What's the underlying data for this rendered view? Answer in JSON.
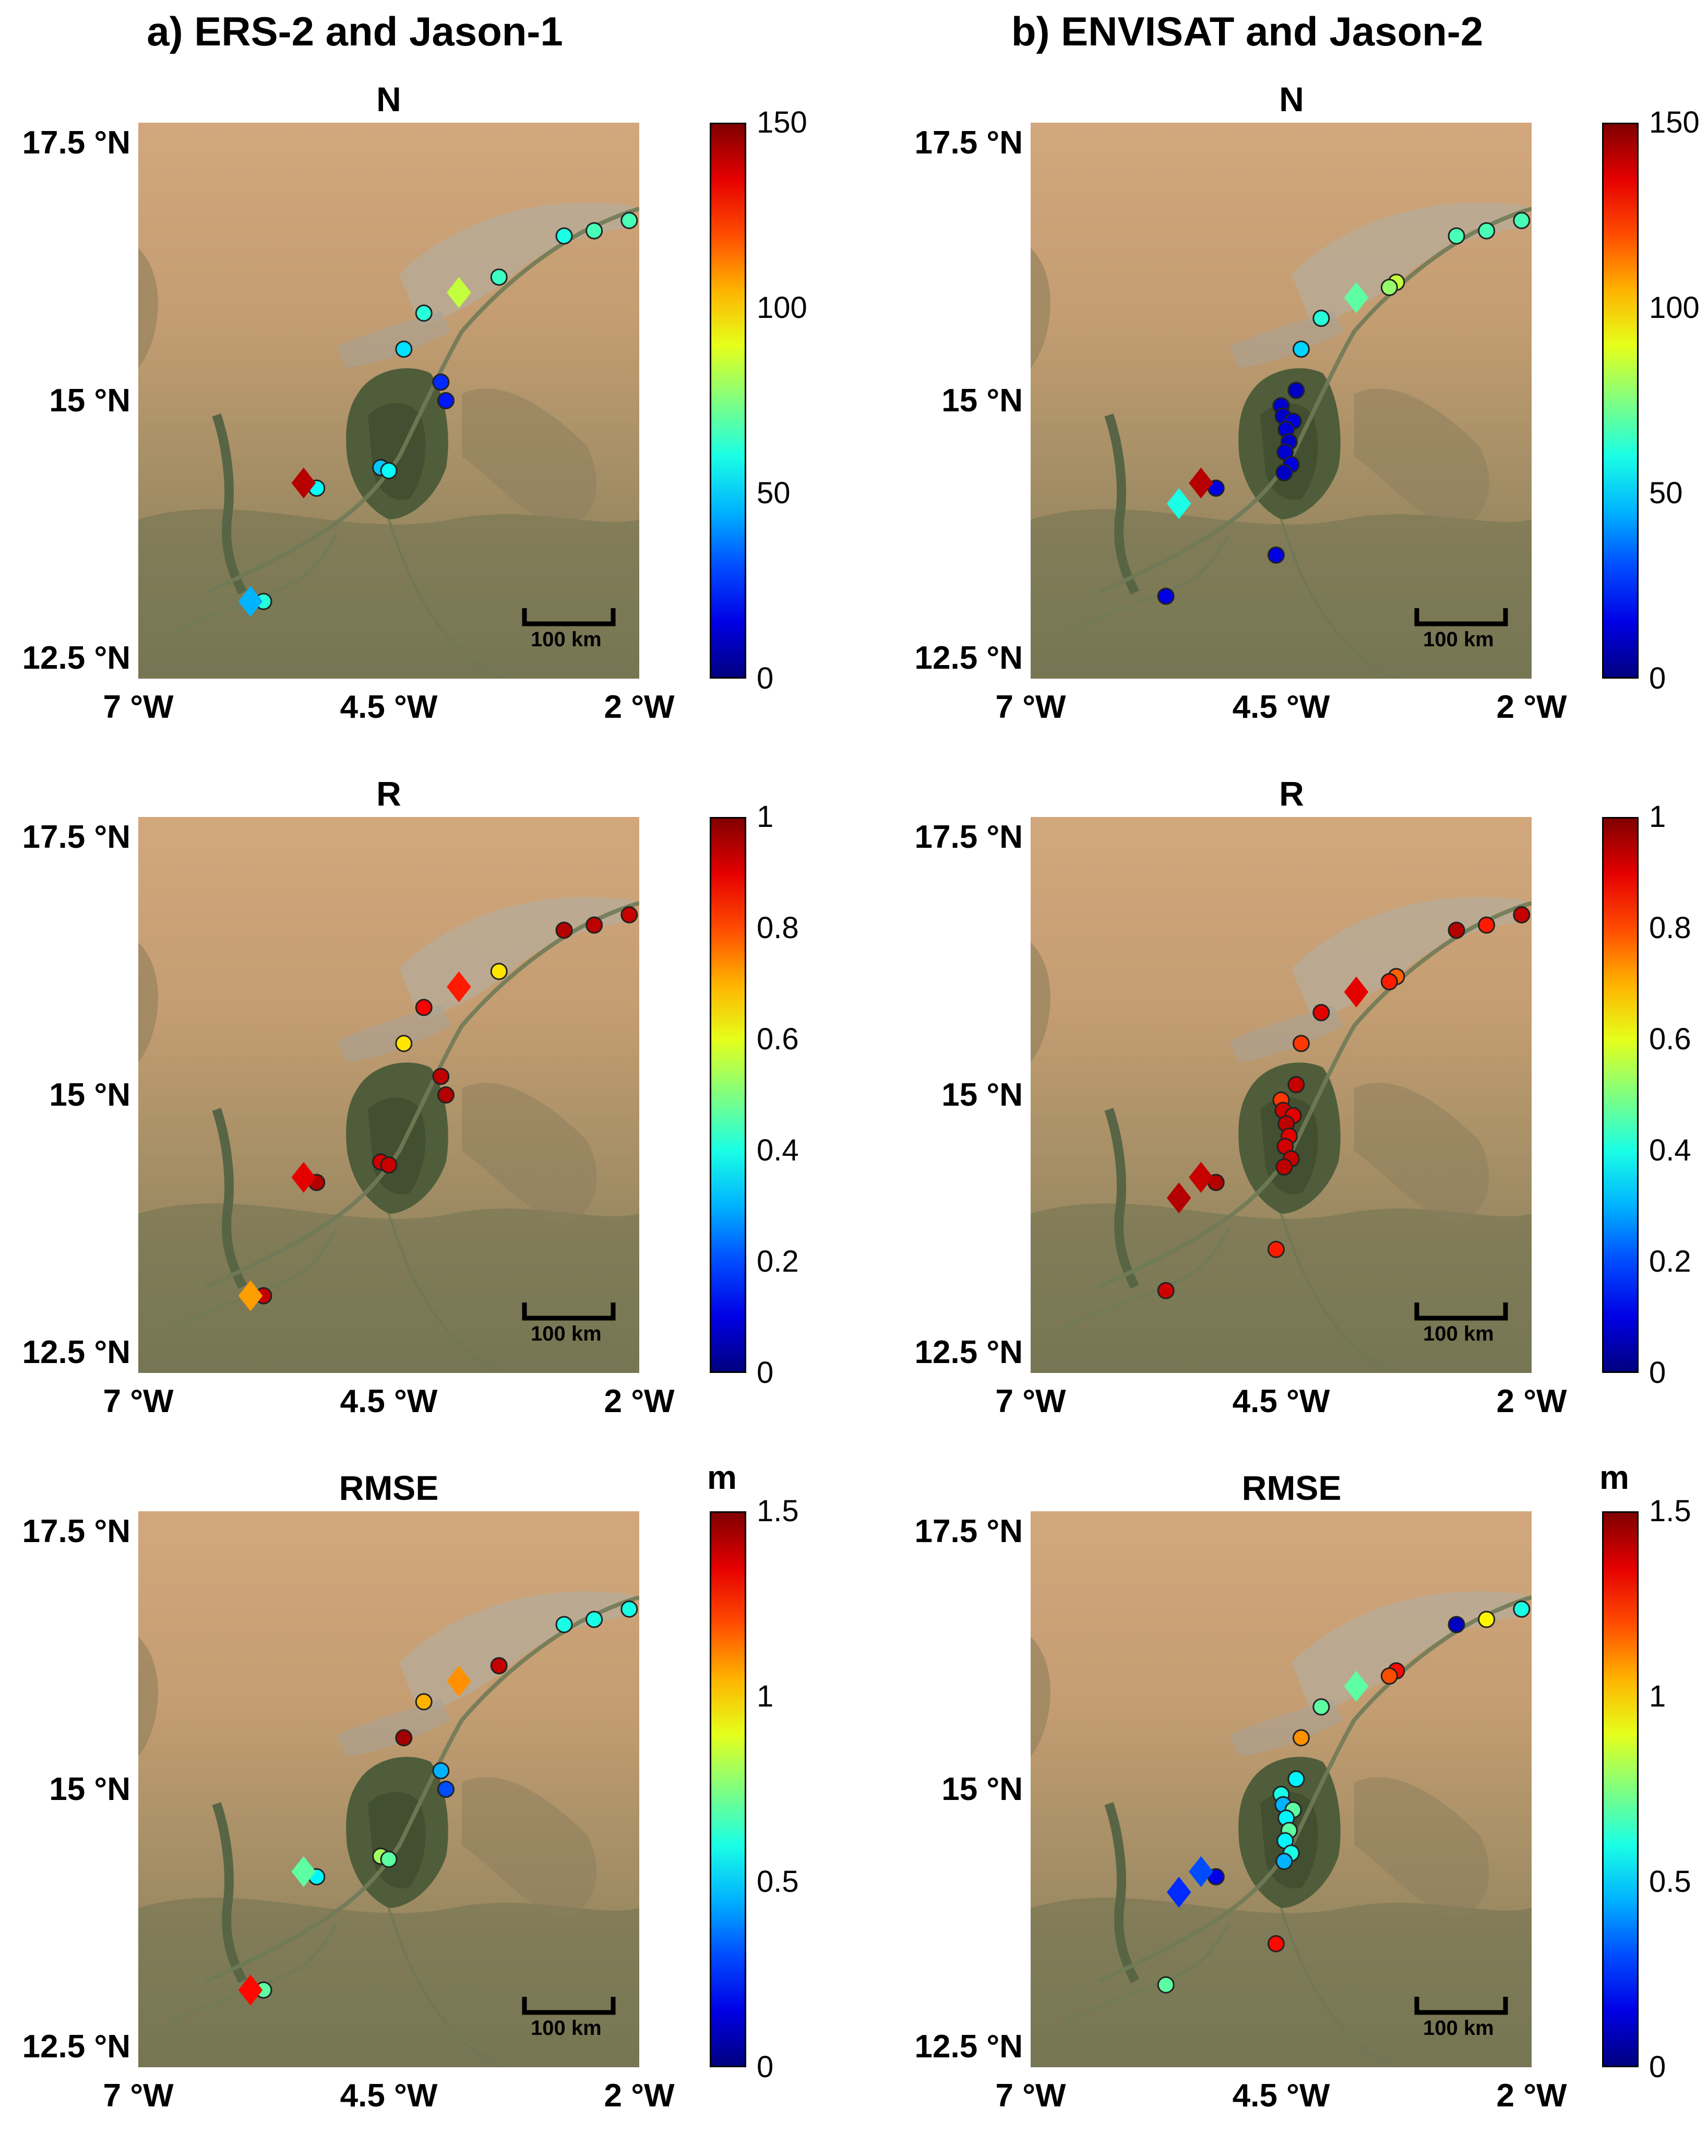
{
  "columns": [
    {
      "title": "a) ERS-2 and Jason-1"
    },
    {
      "title": "b) ENVISAT and Jason-2"
    }
  ],
  "lat_labels": [
    "17.5 °N",
    "15 °N",
    "12.5 °N"
  ],
  "lon_labels": [
    "7 °W",
    "4.5 °W",
    "2 °W"
  ],
  "scale_label": "100 km",
  "colormap": "jet",
  "panels": [
    {
      "row": 0,
      "col": 0,
      "title": "N",
      "unit": "",
      "cb_min": 0,
      "cb_max": 150,
      "cb_ticks": [
        "150",
        "100",
        "50",
        "0"
      ],
      "points": [
        {
          "lon": -2.1,
          "lat": 16.75,
          "v": 67,
          "shape": "circle"
        },
        {
          "lon": -2.45,
          "lat": 16.65,
          "v": 67,
          "shape": "circle"
        },
        {
          "lon": -2.75,
          "lat": 16.6,
          "v": 60,
          "shape": "circle"
        },
        {
          "lon": -3.4,
          "lat": 16.2,
          "v": 65,
          "shape": "circle"
        },
        {
          "lon": -3.8,
          "lat": 16.05,
          "v": 85,
          "shape": "diamond"
        },
        {
          "lon": -4.15,
          "lat": 15.85,
          "v": 62,
          "shape": "circle"
        },
        {
          "lon": -4.35,
          "lat": 15.5,
          "v": 52,
          "shape": "circle"
        },
        {
          "lon": -3.98,
          "lat": 15.18,
          "v": 25,
          "shape": "circle"
        },
        {
          "lon": -3.93,
          "lat": 15.0,
          "v": 22,
          "shape": "circle"
        },
        {
          "lon": -4.58,
          "lat": 14.35,
          "v": 48,
          "shape": "circle"
        },
        {
          "lon": -4.5,
          "lat": 14.32,
          "v": 57,
          "shape": "circle"
        },
        {
          "lon": -5.22,
          "lat": 14.15,
          "v": 57,
          "shape": "circle"
        },
        {
          "lon": -5.35,
          "lat": 14.2,
          "v": 142,
          "shape": "diamond"
        },
        {
          "lon": -5.75,
          "lat": 13.05,
          "v": 62,
          "shape": "circle"
        },
        {
          "lon": -5.88,
          "lat": 13.05,
          "v": 45,
          "shape": "diamond"
        }
      ]
    },
    {
      "row": 0,
      "col": 1,
      "title": "N",
      "unit": "",
      "cb_min": 0,
      "cb_max": 150,
      "cb_ticks": [
        "150",
        "100",
        "50",
        "0"
      ],
      "points": [
        {
          "lon": -2.1,
          "lat": 16.75,
          "v": 67,
          "shape": "circle"
        },
        {
          "lon": -2.45,
          "lat": 16.65,
          "v": 67,
          "shape": "circle"
        },
        {
          "lon": -2.75,
          "lat": 16.6,
          "v": 67,
          "shape": "circle"
        },
        {
          "lon": -3.35,
          "lat": 16.15,
          "v": 85,
          "shape": "circle"
        },
        {
          "lon": -3.42,
          "lat": 16.1,
          "v": 78,
          "shape": "circle"
        },
        {
          "lon": -3.75,
          "lat": 16.0,
          "v": 70,
          "shape": "diamond"
        },
        {
          "lon": -4.1,
          "lat": 15.8,
          "v": 62,
          "shape": "circle"
        },
        {
          "lon": -4.3,
          "lat": 15.5,
          "v": 50,
          "shape": "circle"
        },
        {
          "lon": -4.35,
          "lat": 15.1,
          "v": 10,
          "shape": "circle"
        },
        {
          "lon": -4.5,
          "lat": 14.95,
          "v": 12,
          "shape": "circle"
        },
        {
          "lon": -4.48,
          "lat": 14.85,
          "v": 10,
          "shape": "circle"
        },
        {
          "lon": -4.38,
          "lat": 14.8,
          "v": 14,
          "shape": "circle"
        },
        {
          "lon": -4.45,
          "lat": 14.72,
          "v": 12,
          "shape": "circle"
        },
        {
          "lon": -4.42,
          "lat": 14.6,
          "v": 10,
          "shape": "circle"
        },
        {
          "lon": -4.46,
          "lat": 14.5,
          "v": 12,
          "shape": "circle"
        },
        {
          "lon": -4.4,
          "lat": 14.38,
          "v": 14,
          "shape": "circle"
        },
        {
          "lon": -4.47,
          "lat": 14.3,
          "v": 10,
          "shape": "circle"
        },
        {
          "lon": -5.15,
          "lat": 14.15,
          "v": 14,
          "shape": "circle"
        },
        {
          "lon": -5.3,
          "lat": 14.2,
          "v": 142,
          "shape": "diamond"
        },
        {
          "lon": -5.52,
          "lat": 14.0,
          "v": 60,
          "shape": "diamond"
        },
        {
          "lon": -4.55,
          "lat": 13.5,
          "v": 15,
          "shape": "circle"
        },
        {
          "lon": -5.65,
          "lat": 13.1,
          "v": 15,
          "shape": "circle"
        }
      ]
    },
    {
      "row": 1,
      "col": 0,
      "title": "R",
      "unit": "",
      "cb_min": 0,
      "cb_max": 1,
      "cb_ticks": [
        "1",
        "0.8",
        "0.6",
        "0.4",
        "0.2",
        "0"
      ],
      "points": [
        {
          "lon": -2.1,
          "lat": 16.75,
          "v": 0.93,
          "shape": "circle"
        },
        {
          "lon": -2.45,
          "lat": 16.65,
          "v": 0.94,
          "shape": "circle"
        },
        {
          "lon": -2.75,
          "lat": 16.6,
          "v": 0.95,
          "shape": "circle"
        },
        {
          "lon": -3.4,
          "lat": 16.2,
          "v": 0.65,
          "shape": "circle"
        },
        {
          "lon": -3.8,
          "lat": 16.05,
          "v": 0.85,
          "shape": "diamond"
        },
        {
          "lon": -4.15,
          "lat": 15.85,
          "v": 0.88,
          "shape": "circle"
        },
        {
          "lon": -4.35,
          "lat": 15.5,
          "v": 0.65,
          "shape": "circle"
        },
        {
          "lon": -3.98,
          "lat": 15.18,
          "v": 0.94,
          "shape": "circle"
        },
        {
          "lon": -3.93,
          "lat": 15.0,
          "v": 0.95,
          "shape": "circle"
        },
        {
          "lon": -4.58,
          "lat": 14.35,
          "v": 0.92,
          "shape": "circle"
        },
        {
          "lon": -4.5,
          "lat": 14.32,
          "v": 0.93,
          "shape": "circle"
        },
        {
          "lon": -5.22,
          "lat": 14.15,
          "v": 0.95,
          "shape": "circle"
        },
        {
          "lon": -5.35,
          "lat": 14.2,
          "v": 0.9,
          "shape": "diamond"
        },
        {
          "lon": -5.75,
          "lat": 13.05,
          "v": 0.93,
          "shape": "circle"
        },
        {
          "lon": -5.88,
          "lat": 13.05,
          "v": 0.72,
          "shape": "diamond"
        }
      ]
    },
    {
      "row": 1,
      "col": 1,
      "title": "R",
      "unit": "",
      "cb_min": 0,
      "cb_max": 1,
      "cb_ticks": [
        "1",
        "0.8",
        "0.6",
        "0.4",
        "0.2",
        "0"
      ],
      "points": [
        {
          "lon": -2.1,
          "lat": 16.75,
          "v": 0.93,
          "shape": "circle"
        },
        {
          "lon": -2.45,
          "lat": 16.65,
          "v": 0.85,
          "shape": "circle"
        },
        {
          "lon": -2.75,
          "lat": 16.6,
          "v": 0.95,
          "shape": "circle"
        },
        {
          "lon": -3.35,
          "lat": 16.15,
          "v": 0.78,
          "shape": "circle"
        },
        {
          "lon": -3.42,
          "lat": 16.1,
          "v": 0.85,
          "shape": "circle"
        },
        {
          "lon": -3.75,
          "lat": 16.0,
          "v": 0.9,
          "shape": "diamond"
        },
        {
          "lon": -4.1,
          "lat": 15.8,
          "v": 0.9,
          "shape": "circle"
        },
        {
          "lon": -4.3,
          "lat": 15.5,
          "v": 0.82,
          "shape": "circle"
        },
        {
          "lon": -4.35,
          "lat": 15.1,
          "v": 0.93,
          "shape": "circle"
        },
        {
          "lon": -4.5,
          "lat": 14.95,
          "v": 0.82,
          "shape": "circle"
        },
        {
          "lon": -4.48,
          "lat": 14.85,
          "v": 0.92,
          "shape": "circle"
        },
        {
          "lon": -4.38,
          "lat": 14.8,
          "v": 0.9,
          "shape": "circle"
        },
        {
          "lon": -4.45,
          "lat": 14.72,
          "v": 0.94,
          "shape": "circle"
        },
        {
          "lon": -4.42,
          "lat": 14.6,
          "v": 0.9,
          "shape": "circle"
        },
        {
          "lon": -4.46,
          "lat": 14.5,
          "v": 0.92,
          "shape": "circle"
        },
        {
          "lon": -4.4,
          "lat": 14.38,
          "v": 0.93,
          "shape": "circle"
        },
        {
          "lon": -4.47,
          "lat": 14.3,
          "v": 0.94,
          "shape": "circle"
        },
        {
          "lon": -5.15,
          "lat": 14.15,
          "v": 0.95,
          "shape": "circle"
        },
        {
          "lon": -5.3,
          "lat": 14.2,
          "v": 0.93,
          "shape": "diamond"
        },
        {
          "lon": -5.52,
          "lat": 14.0,
          "v": 0.95,
          "shape": "diamond"
        },
        {
          "lon": -4.55,
          "lat": 13.5,
          "v": 0.85,
          "shape": "circle"
        },
        {
          "lon": -5.65,
          "lat": 13.1,
          "v": 0.92,
          "shape": "circle"
        }
      ]
    },
    {
      "row": 2,
      "col": 0,
      "title": "RMSE",
      "unit": "m",
      "cb_min": 0,
      "cb_max": 1.5,
      "cb_ticks": [
        "1.5",
        "1",
        "0.5",
        "0"
      ],
      "points": [
        {
          "lon": -2.1,
          "lat": 16.75,
          "v": 0.6,
          "shape": "circle"
        },
        {
          "lon": -2.45,
          "lat": 16.65,
          "v": 0.6,
          "shape": "circle"
        },
        {
          "lon": -2.75,
          "lat": 16.6,
          "v": 0.6,
          "shape": "circle"
        },
        {
          "lon": -3.4,
          "lat": 16.2,
          "v": 1.4,
          "shape": "circle"
        },
        {
          "lon": -3.8,
          "lat": 16.05,
          "v": 1.1,
          "shape": "diamond"
        },
        {
          "lon": -4.15,
          "lat": 15.85,
          "v": 1.05,
          "shape": "circle"
        },
        {
          "lon": -4.35,
          "lat": 15.5,
          "v": 1.45,
          "shape": "circle"
        },
        {
          "lon": -3.98,
          "lat": 15.18,
          "v": 0.45,
          "shape": "circle"
        },
        {
          "lon": -3.93,
          "lat": 15.0,
          "v": 0.3,
          "shape": "circle"
        },
        {
          "lon": -4.58,
          "lat": 14.35,
          "v": 0.8,
          "shape": "circle"
        },
        {
          "lon": -4.5,
          "lat": 14.32,
          "v": 0.7,
          "shape": "circle"
        },
        {
          "lon": -5.22,
          "lat": 14.15,
          "v": 0.55,
          "shape": "circle"
        },
        {
          "lon": -5.35,
          "lat": 14.2,
          "v": 0.7,
          "shape": "diamond"
        },
        {
          "lon": -5.75,
          "lat": 13.05,
          "v": 0.7,
          "shape": "circle"
        },
        {
          "lon": -5.88,
          "lat": 13.05,
          "v": 1.3,
          "shape": "diamond"
        }
      ]
    },
    {
      "row": 2,
      "col": 1,
      "title": "RMSE",
      "unit": "m",
      "cb_min": 0,
      "cb_max": 1.5,
      "cb_ticks": [
        "1.5",
        "1",
        "0.5",
        "0"
      ],
      "points": [
        {
          "lon": -2.1,
          "lat": 16.75,
          "v": 0.6,
          "shape": "circle"
        },
        {
          "lon": -2.45,
          "lat": 16.65,
          "v": 0.95,
          "shape": "circle"
        },
        {
          "lon": -2.75,
          "lat": 16.6,
          "v": 0.1,
          "shape": "circle"
        },
        {
          "lon": -3.35,
          "lat": 16.15,
          "v": 1.3,
          "shape": "circle"
        },
        {
          "lon": -3.42,
          "lat": 16.1,
          "v": 1.2,
          "shape": "circle"
        },
        {
          "lon": -3.75,
          "lat": 16.0,
          "v": 0.7,
          "shape": "diamond"
        },
        {
          "lon": -4.1,
          "lat": 15.8,
          "v": 0.7,
          "shape": "circle"
        },
        {
          "lon": -4.3,
          "lat": 15.5,
          "v": 1.1,
          "shape": "circle"
        },
        {
          "lon": -4.35,
          "lat": 15.1,
          "v": 0.55,
          "shape": "circle"
        },
        {
          "lon": -4.5,
          "lat": 14.95,
          "v": 0.6,
          "shape": "circle"
        },
        {
          "lon": -4.48,
          "lat": 14.85,
          "v": 0.45,
          "shape": "circle"
        },
        {
          "lon": -4.38,
          "lat": 14.8,
          "v": 0.7,
          "shape": "circle"
        },
        {
          "lon": -4.45,
          "lat": 14.72,
          "v": 0.55,
          "shape": "circle"
        },
        {
          "lon": -4.42,
          "lat": 14.6,
          "v": 0.7,
          "shape": "circle"
        },
        {
          "lon": -4.46,
          "lat": 14.5,
          "v": 0.55,
          "shape": "circle"
        },
        {
          "lon": -4.4,
          "lat": 14.38,
          "v": 0.6,
          "shape": "circle"
        },
        {
          "lon": -4.47,
          "lat": 14.3,
          "v": 0.45,
          "shape": "circle"
        },
        {
          "lon": -5.15,
          "lat": 14.15,
          "v": 0.15,
          "shape": "circle"
        },
        {
          "lon": -5.3,
          "lat": 14.2,
          "v": 0.3,
          "shape": "diamond"
        },
        {
          "lon": -5.52,
          "lat": 14.0,
          "v": 0.25,
          "shape": "diamond"
        },
        {
          "lon": -4.55,
          "lat": 13.5,
          "v": 1.3,
          "shape": "circle"
        },
        {
          "lon": -5.65,
          "lat": 13.1,
          "v": 0.7,
          "shape": "circle"
        }
      ]
    }
  ]
}
